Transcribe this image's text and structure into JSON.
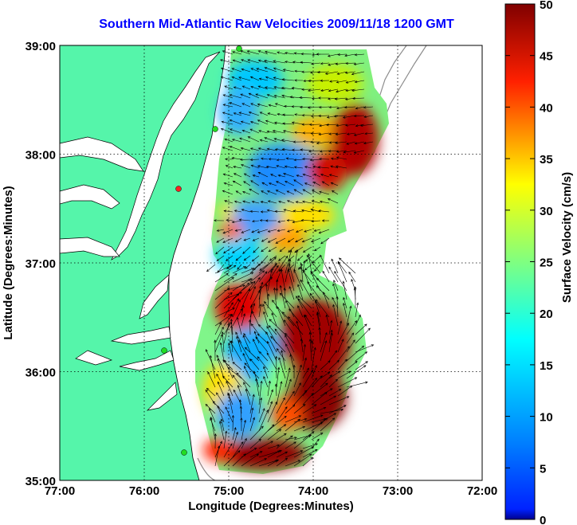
{
  "title": "Southern Mid-Atlantic Raw Velocities 2009/11/18 1200 GMT",
  "x_axis": {
    "label": "Longitude (Degrees:Minutes)",
    "ticks": [
      "77:00",
      "76:00",
      "75:00",
      "74:00",
      "73:00",
      "72:00"
    ],
    "range": [
      -77,
      -72
    ]
  },
  "y_axis": {
    "label": "Latitude (Degrees:Minutes)",
    "ticks": [
      "35:00",
      "36:00",
      "37:00",
      "38:00",
      "39:00"
    ],
    "range": [
      35,
      39
    ]
  },
  "colorbar": {
    "label": "Surface Velocity (cm/s)",
    "ticks": [
      "0",
      "5",
      "10",
      "15",
      "20",
      "25",
      "30",
      "35",
      "40",
      "45",
      "50"
    ],
    "range": [
      0,
      50
    ],
    "colormap": "jet"
  },
  "colors": {
    "title": "#0000ff",
    "land": "#55f5aa",
    "coast_line": "#000000",
    "bathymetry_contour": "#8c8c8c",
    "grid": "#000000",
    "station_green": "#22dd22",
    "station_red": "#ff2222"
  }
}
